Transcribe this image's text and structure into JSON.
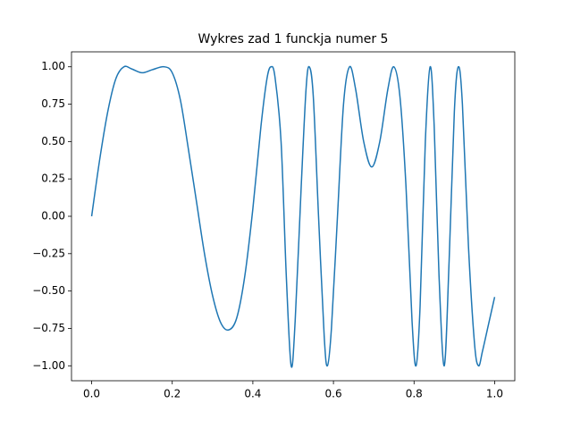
{
  "chart_data": {
    "type": "line",
    "title": "Wykres zad 1 funckja numer 5",
    "x": [
      0,
      0.02,
      0.04,
      0.06,
      0.08,
      0.1,
      0.125,
      0.15,
      0.18,
      0.2,
      0.22,
      0.24,
      0.26,
      0.28,
      0.3,
      0.32,
      0.34,
      0.36,
      0.38,
      0.4,
      0.42,
      0.435,
      0.445,
      0.455,
      0.47,
      0.483,
      0.495,
      0.505,
      0.52,
      0.532,
      0.54,
      0.55,
      0.563,
      0.577,
      0.585,
      0.595,
      0.61,
      0.625,
      0.64,
      0.655,
      0.675,
      0.695,
      0.715,
      0.735,
      0.75,
      0.765,
      0.78,
      0.795,
      0.805,
      0.815,
      0.828,
      0.84,
      0.85,
      0.862,
      0.875,
      0.887,
      0.9,
      0.91,
      0.92,
      0.935,
      0.95,
      0.96,
      0.97,
      0.985,
      1.0
    ],
    "series": [
      {
        "color": "#1f77b4",
        "values": [
          0,
          0.38,
          0.7,
          0.92,
          1.0,
          0.985,
          0.96,
          0.98,
          1.0,
          0.96,
          0.78,
          0.45,
          0.1,
          -0.25,
          -0.53,
          -0.71,
          -0.76,
          -0.68,
          -0.4,
          0.05,
          0.6,
          0.92,
          1.0,
          0.93,
          0.5,
          -0.4,
          -1.0,
          -0.7,
          0.2,
          0.85,
          1.0,
          0.8,
          0.0,
          -0.8,
          -1.0,
          -0.75,
          0.0,
          0.75,
          1.0,
          0.85,
          0.5,
          0.33,
          0.5,
          0.85,
          1.0,
          0.8,
          0.2,
          -0.7,
          -1.0,
          -0.6,
          0.5,
          1.0,
          0.6,
          -0.4,
          -1.0,
          -0.3,
          0.7,
          1.0,
          0.75,
          -0.2,
          -0.85,
          -1.0,
          -0.9,
          -0.72,
          -0.54
        ]
      }
    ],
    "xlim": [
      -0.05,
      1.05
    ],
    "ylim": [
      -1.1,
      1.1
    ],
    "xticks": [
      {
        "value": 0,
        "label": "0.0"
      },
      {
        "value": 0.2,
        "label": "0.2"
      },
      {
        "value": 0.4,
        "label": "0.4"
      },
      {
        "value": 0.6,
        "label": "0.6"
      },
      {
        "value": 0.8,
        "label": "0.8"
      },
      {
        "value": 1,
        "label": "1.0"
      }
    ],
    "yticks": [
      {
        "value": -1,
        "label": "−1.00"
      },
      {
        "value": -0.75,
        "label": "−0.75"
      },
      {
        "value": -0.5,
        "label": "−0.50"
      },
      {
        "value": -0.25,
        "label": "−0.25"
      },
      {
        "value": 0,
        "label": "0.00"
      },
      {
        "value": 0.25,
        "label": "0.25"
      },
      {
        "value": 0.5,
        "label": "0.50"
      },
      {
        "value": 0.75,
        "label": "0.75"
      },
      {
        "value": 1,
        "label": "1.00"
      }
    ]
  }
}
